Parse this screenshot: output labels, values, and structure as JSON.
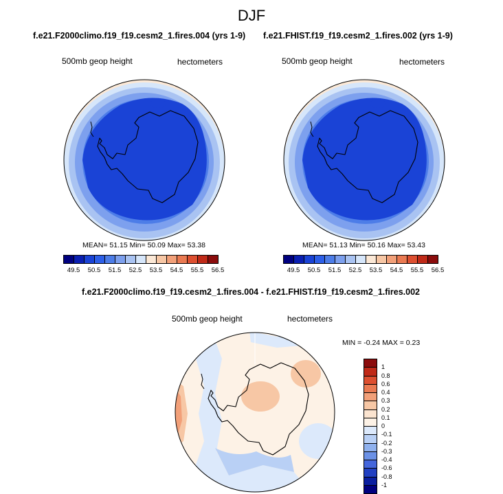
{
  "title": "DJF",
  "panels": [
    {
      "title": "f.e21.F2000climo.f19_f19.cesm2_1.fires.004 (yrs 1-9)",
      "variable": "500mb geop height",
      "units": "hectometers",
      "stats": {
        "mean_label": "MEAN=",
        "mean": "51.15",
        "min_label": "Min=",
        "min": "50.09",
        "max_label": "Max=",
        "max": "53.38"
      }
    },
    {
      "title": "f.e21.FHIST.f19_f19.cesm2_1.fires.002 (yrs 1-9)",
      "variable": "500mb geop height",
      "units": "hectometers",
      "stats": {
        "mean_label": "MEAN=",
        "mean": "51.13",
        "min_label": "Min=",
        "min": "50.16",
        "max_label": "Max=",
        "max": "53.43"
      }
    }
  ],
  "colorbar": {
    "ticks": [
      "49.5",
      "50.5",
      "51.5",
      "52.5",
      "53.5",
      "54.5",
      "55.5",
      "56.5"
    ],
    "colors": [
      "#00007f",
      "#0a1fb2",
      "#1a43d6",
      "#2d5fe8",
      "#4d7de8",
      "#7da0ee",
      "#a9c3f2",
      "#d6e6fa",
      "#fbe8d6",
      "#f7c7a5",
      "#f2a079",
      "#ea7a52",
      "#dd4f30",
      "#c02a18",
      "#8b0c0c"
    ]
  },
  "difference": {
    "title": "f.e21.F2000climo.f19_f19.cesm2_1.fires.004 - f.e21.FHIST.f19_f19.cesm2_1.fires.002",
    "variable": "500mb geop height",
    "units": "hectometers",
    "range_text": "MIN = -0.24 MAX =  0.23",
    "colorbar": {
      "ticks": [
        "1",
        "0.8",
        "0.6",
        "0.4",
        "0.3",
        "0.2",
        "0.1",
        "0",
        "-0.1",
        "-0.2",
        "-0.3",
        "-0.4",
        "-0.6",
        "-0.8",
        "-1"
      ],
      "colors": [
        "#8b0c0c",
        "#c02a18",
        "#dd4f30",
        "#ea7a52",
        "#f2a079",
        "#f7c7a5",
        "#fbe4d0",
        "#fdf2e6",
        "#dce9fb",
        "#b9d0f5",
        "#8fb1ee",
        "#6b91e6",
        "#4466dc",
        "#2140c2",
        "#0a1fa0",
        "#00007f"
      ]
    }
  }
}
